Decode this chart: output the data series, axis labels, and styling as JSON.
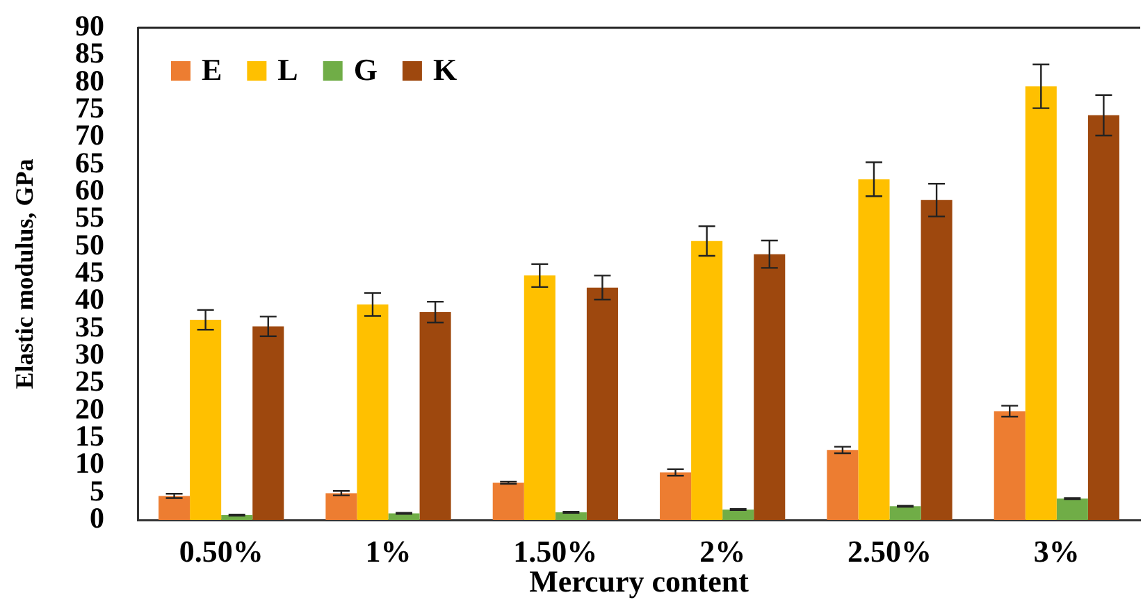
{
  "chart_data": {
    "type": "bar",
    "xlabel": "Mercury content",
    "ylabel": "Elastic modulus, GPa",
    "categories": [
      "0.50%",
      "1%",
      "1.50%",
      "2%",
      "2.50%",
      "3%"
    ],
    "series": [
      {
        "name": "E",
        "color": "#ed7d31",
        "values": [
          4.4,
          4.9,
          6.8,
          8.7,
          12.8,
          19.9
        ],
        "errors": [
          0.4,
          0.4,
          0.2,
          0.6,
          0.6,
          1.0
        ]
      },
      {
        "name": "L",
        "color": "#ffc000",
        "values": [
          36.6,
          39.4,
          44.7,
          51.0,
          62.3,
          79.3
        ],
        "errors": [
          1.8,
          2.1,
          2.1,
          2.7,
          3.1,
          4.0
        ]
      },
      {
        "name": "G",
        "color": "#70ad47",
        "values": [
          0.9,
          1.2,
          1.4,
          1.9,
          2.5,
          3.9
        ],
        "errors": [
          0.1,
          0.1,
          0.1,
          0.1,
          0.1,
          0.1
        ]
      },
      {
        "name": "K",
        "color": "#9e480e",
        "values": [
          35.4,
          38.0,
          42.5,
          48.6,
          58.5,
          74.0
        ],
        "errors": [
          1.8,
          1.9,
          2.2,
          2.5,
          3.0,
          3.7
        ]
      }
    ],
    "ylim": [
      0,
      90
    ],
    "yticks": [
      0,
      5,
      10,
      15,
      20,
      25,
      30,
      35,
      40,
      45,
      50,
      55,
      60,
      65,
      70,
      75,
      80,
      85,
      90
    ],
    "legend": "top left",
    "grid": false
  }
}
